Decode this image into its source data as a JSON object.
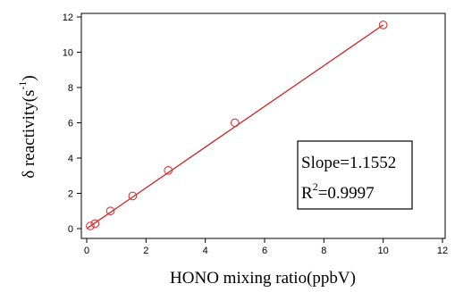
{
  "chart_data": {
    "type": "scatter",
    "xlabel": "HONO mixing ratio(ppbV)",
    "ylabel": "δ reactivity(s",
    "ylabel_superscript": "-1",
    "ylabel_close": ")",
    "xlim": [
      0,
      12
    ],
    "ylim": [
      0,
      12
    ],
    "x_ticks": [
      "0",
      "2",
      "4",
      "6",
      "8",
      "10",
      "12"
    ],
    "y_ticks": [
      "0",
      "2",
      "4",
      "6",
      "8",
      "10",
      "12"
    ],
    "grid": false,
    "colors": {
      "marker": "#dd3333",
      "fit_line": "#cc2222",
      "axes": "#000000"
    },
    "series": [
      {
        "x": [
          0.12,
          0.28,
          0.8,
          1.55,
          2.75,
          5.0,
          10.0
        ],
        "y": [
          0.15,
          0.28,
          1.0,
          1.85,
          3.3,
          6.0,
          11.55
        ]
      }
    ],
    "fit": {
      "x": [
        0.0,
        10.0
      ],
      "y": [
        0.0,
        11.55
      ]
    },
    "annotation": {
      "slope_text": "Slope=1.1552",
      "r2_prefix": "R",
      "r2_superscript": "2",
      "r2_value": "=0.9997"
    }
  }
}
